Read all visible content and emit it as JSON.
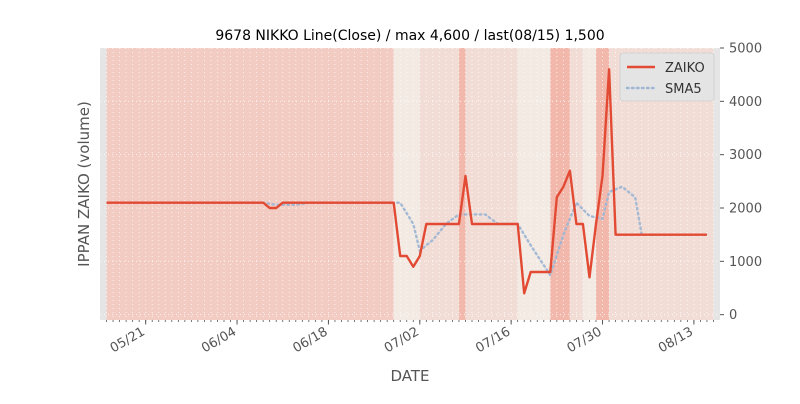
{
  "chart_data": {
    "type": "line",
    "title": "9678 NIKKO Line(Close) / max 4,600 / last(08/15) 1,500",
    "xlabel": "DATE",
    "ylabel": "IPPAN ZAIKO (volume)",
    "ylim": [
      -100,
      5000
    ],
    "y_ticks": [
      0,
      1000,
      2000,
      3000,
      4000,
      5000
    ],
    "y_tick_labels": [
      "0",
      "1000",
      "2000",
      "3000",
      "4000",
      "5000"
    ],
    "y_axis_side": "right",
    "x_range": [
      "2018-05-14",
      "2018-08-17"
    ],
    "x_ticks": [
      "2018-05-21",
      "2018-06-04",
      "2018-06-18",
      "2018-07-02",
      "2018-07-16",
      "2018-07-30",
      "2018-08-13"
    ],
    "x_tick_labels": [
      "05/21",
      "06/04",
      "06/18",
      "07/02",
      "07/16",
      "07/30",
      "08/13"
    ],
    "legend_position": "top-right",
    "grid": true,
    "colors": {
      "zaiko": "#e24a33",
      "sma5": "#9fb6d4",
      "axes_background": "#e5e5e5",
      "band_dark": "#f2b8ac",
      "band_mid": "#f2cbc2",
      "band_light": "#f2ddd6",
      "band_pale": "#f2eae3",
      "grid": "#ffffff",
      "text": "#555555"
    },
    "series": [
      {
        "name": "ZAIKO",
        "style": "solid",
        "points": [
          [
            "2018-05-15",
            2100
          ],
          [
            "2018-06-06",
            2100
          ],
          [
            "2018-06-08",
            2100
          ],
          [
            "2018-06-09",
            2000
          ],
          [
            "2018-06-10",
            2000
          ],
          [
            "2018-06-11",
            2100
          ],
          [
            "2018-06-28",
            2100
          ],
          [
            "2018-06-29",
            1100
          ],
          [
            "2018-06-30",
            1100
          ],
          [
            "2018-07-01",
            900
          ],
          [
            "2018-07-02",
            1100
          ],
          [
            "2018-07-03",
            1700
          ],
          [
            "2018-07-08",
            1700
          ],
          [
            "2018-07-09",
            2600
          ],
          [
            "2018-07-10",
            1700
          ],
          [
            "2018-07-17",
            1700
          ],
          [
            "2018-07-18",
            400
          ],
          [
            "2018-07-19",
            800
          ],
          [
            "2018-07-22",
            800
          ],
          [
            "2018-07-23",
            2200
          ],
          [
            "2018-07-24",
            2400
          ],
          [
            "2018-07-25",
            2700
          ],
          [
            "2018-07-26",
            1700
          ],
          [
            "2018-07-27",
            1700
          ],
          [
            "2018-07-28",
            700
          ],
          [
            "2018-07-29",
            1700
          ],
          [
            "2018-07-30",
            2600
          ],
          [
            "2018-07-31",
            4600
          ],
          [
            "2018-08-01",
            1500
          ],
          [
            "2018-08-15",
            1500
          ]
        ]
      },
      {
        "name": "SMA5",
        "style": "dotted",
        "points": [
          [
            "2018-05-19",
            2100
          ],
          [
            "2018-06-08",
            2100
          ],
          [
            "2018-06-10",
            2060
          ],
          [
            "2018-06-13",
            2060
          ],
          [
            "2018-06-15",
            2100
          ],
          [
            "2018-06-29",
            2100
          ],
          [
            "2018-07-01",
            1700
          ],
          [
            "2018-07-02",
            1200
          ],
          [
            "2018-07-04",
            1400
          ],
          [
            "2018-07-06",
            1700
          ],
          [
            "2018-07-08",
            1880
          ],
          [
            "2018-07-12",
            1880
          ],
          [
            "2018-07-14",
            1700
          ],
          [
            "2018-07-17",
            1700
          ],
          [
            "2018-07-19",
            1300
          ],
          [
            "2018-07-22",
            740
          ],
          [
            "2018-07-24",
            1500
          ],
          [
            "2018-07-26",
            2100
          ],
          [
            "2018-07-28",
            1850
          ],
          [
            "2018-07-30",
            1800
          ],
          [
            "2018-07-31",
            2300
          ],
          [
            "2018-08-02",
            2400
          ],
          [
            "2018-08-04",
            2200
          ],
          [
            "2018-08-05",
            1500
          ],
          [
            "2018-08-15",
            1500
          ]
        ]
      }
    ],
    "bands": [
      {
        "start": "2018-05-14",
        "end": "2018-05-15",
        "shade": "none"
      },
      {
        "start": "2018-05-15",
        "end": "2018-06-28",
        "shade": "mid"
      },
      {
        "start": "2018-06-28",
        "end": "2018-07-02",
        "shade": "pale"
      },
      {
        "start": "2018-07-02",
        "end": "2018-07-08",
        "shade": "light"
      },
      {
        "start": "2018-07-08",
        "end": "2018-07-09",
        "shade": "dark"
      },
      {
        "start": "2018-07-09",
        "end": "2018-07-17",
        "shade": "light"
      },
      {
        "start": "2018-07-17",
        "end": "2018-07-22",
        "shade": "pale"
      },
      {
        "start": "2018-07-22",
        "end": "2018-07-25",
        "shade": "dark"
      },
      {
        "start": "2018-07-25",
        "end": "2018-07-27",
        "shade": "light"
      },
      {
        "start": "2018-07-27",
        "end": "2018-07-29",
        "shade": "pale"
      },
      {
        "start": "2018-07-29",
        "end": "2018-07-31",
        "shade": "dark"
      },
      {
        "start": "2018-07-31",
        "end": "2018-08-16",
        "shade": "light"
      },
      {
        "start": "2018-08-16",
        "end": "2018-08-17",
        "shade": "none"
      }
    ]
  }
}
